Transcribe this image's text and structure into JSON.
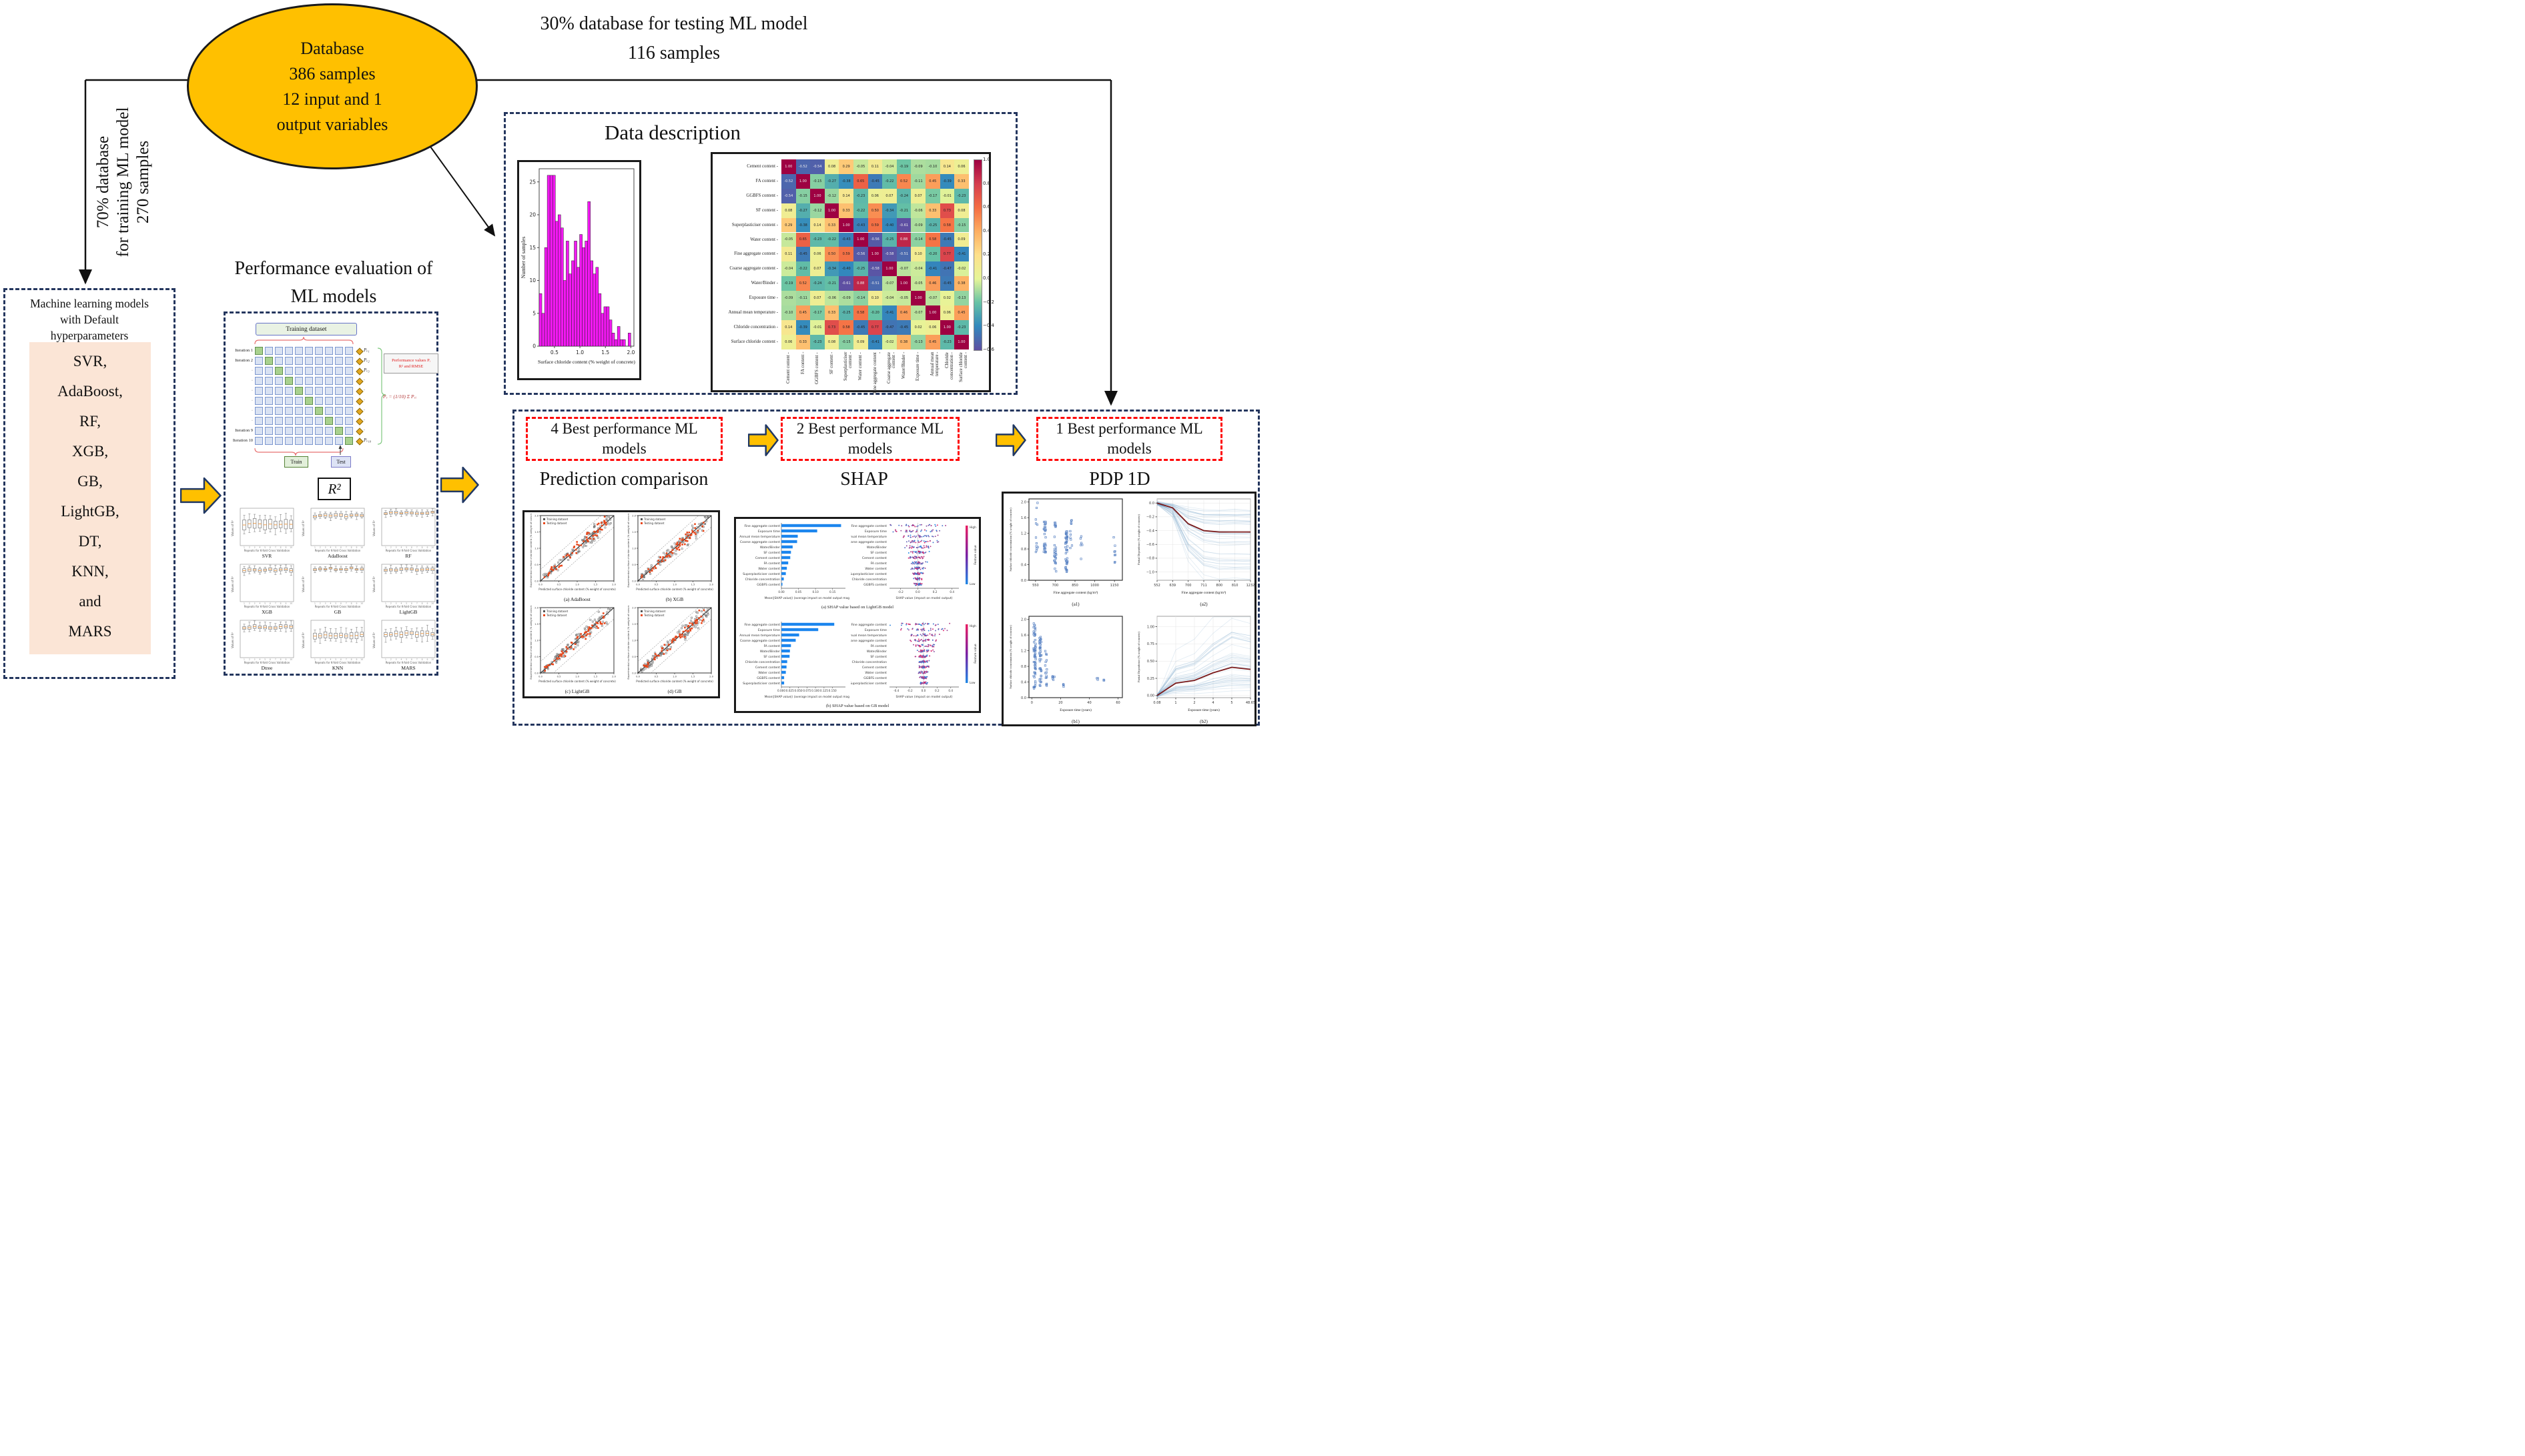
{
  "colors": {
    "gold": "#FFC000",
    "navy": "#203864",
    "dash_blue": "#24365E",
    "red_dash": "#FF0000",
    "peach": "#FBE5D6",
    "hist_magenta": "#F318F3",
    "bar_blue": "#1C86EE",
    "swarm_red": "#E91E63",
    "swarm_blue": "#1E88E5",
    "cell_blue": "#D9E2F3",
    "cell_green": "#A9D18E",
    "train_green": "#E2EFDA",
    "mean_line": "#7B1A1A",
    "scatter_red": "#E8481C",
    "scatter_blue": "#5B84C4"
  },
  "database_ellipse": {
    "lines": [
      "Database",
      "386 samples",
      "12 input and 1",
      "output variables"
    ]
  },
  "split": {
    "test_line1": "30% database for testing ML model",
    "test_line2": "116 samples",
    "train_lines": [
      "70% database",
      "for training ML model",
      "270 samples"
    ]
  },
  "left_box": {
    "title_lines": [
      "Machine learning models",
      "with Default",
      "hyperparameters"
    ],
    "models": [
      "SVR,",
      "AdaBoost,",
      "RF,",
      "XGB,",
      "GB,",
      "LightGB,",
      "DT,",
      "KNN,",
      "and",
      "MARS"
    ]
  },
  "performance": {
    "title_lines": [
      "Performance evaluation of",
      "ML models"
    ],
    "cv": {
      "training_dataset_label": "Training dataset",
      "iteration_labels": [
        "Iteration 1",
        "Iteration 2",
        "·",
        "·",
        "·",
        "·",
        "·",
        "·",
        "Iteration 9",
        "Iteration 10"
      ],
      "p_labels": [
        "Pᵥ₁",
        "Pᵥ₂",
        "Pᵥ₃",
        "·",
        "·",
        "·",
        "·",
        "·",
        "·",
        "Pᵥ₁₀"
      ],
      "performance_box_lines": [
        "Performance values Pᵢ",
        "R² and RMSE"
      ],
      "formula": "Pᵥ = (1/10) Σ Pᵥᵢ",
      "train_label": "Train",
      "test_label": "Test"
    },
    "r2_label": "R²"
  },
  "data_description": {
    "title": "Data description"
  },
  "pipeline": {
    "stage_boxes": [
      "4 Best performance ML models",
      "2 Best performance ML models",
      "1 Best performance ML models"
    ],
    "headings": [
      "Prediction comparison",
      "SHAP",
      "PDP 1D"
    ]
  },
  "chart_data": [
    {
      "id": "chloride_histogram",
      "type": "bar",
      "xlabel": "Surface chloride content (% weight of concrete)",
      "ylabel": "Number of samples",
      "bin_start": 0.2,
      "bin_width": 0.0529,
      "xticks": [
        0.5,
        1.0,
        1.5,
        2.0
      ],
      "yticks": [
        0,
        5,
        10,
        15,
        20,
        25
      ],
      "ylim": [
        0,
        27
      ],
      "values": [
        8,
        5,
        15,
        26,
        26,
        26,
        19,
        20,
        18,
        10,
        16,
        11,
        13,
        16,
        12,
        17,
        15,
        16,
        22,
        13,
        11,
        12,
        8,
        5,
        6,
        6,
        4,
        2,
        1,
        3,
        1,
        1,
        0,
        2
      ]
    },
    {
      "id": "correlation_heatmap",
      "type": "heatmap",
      "labels": [
        "Cement content",
        "FA content",
        "GGBFS content",
        "SF content",
        "Superplasticiser content",
        "Water content",
        "Fine aggregate content",
        "Coarse aggregate content",
        "Water/Binder",
        "Exposure time",
        "Annual mean temperature",
        "Chloride concentration",
        "Surface chloride content"
      ],
      "colorbar_ticks": [
        1.0,
        0.8,
        0.6,
        0.4,
        0.2,
        0.0,
        -0.2,
        -0.4,
        -0.6
      ],
      "matrix": [
        [
          1.0,
          -0.52,
          -0.54,
          0.08,
          0.29,
          -0.05,
          0.11,
          -0.04,
          -0.19,
          -0.09,
          -0.1,
          0.14,
          0.06
        ],
        [
          -0.52,
          1.0,
          -0.15,
          -0.27,
          -0.38,
          0.65,
          -0.45,
          -0.22,
          0.52,
          -0.11,
          0.45,
          -0.39,
          0.33
        ],
        [
          -0.54,
          -0.15,
          1.0,
          -0.12,
          0.14,
          -0.23,
          0.06,
          0.07,
          -0.24,
          0.07,
          -0.17,
          -0.01,
          -0.23
        ],
        [
          0.08,
          -0.27,
          -0.12,
          1.0,
          0.33,
          -0.22,
          0.5,
          -0.34,
          -0.21,
          -0.06,
          0.33,
          0.73,
          0.08
        ],
        [
          0.29,
          -0.38,
          0.14,
          0.33,
          1.0,
          -0.43,
          0.59,
          -0.4,
          -0.61,
          -0.09,
          -0.25,
          0.58,
          -0.15
        ],
        [
          -0.05,
          0.65,
          -0.23,
          -0.22,
          -0.43,
          1.0,
          -0.56,
          -0.25,
          0.88,
          -0.14,
          0.58,
          -0.45,
          0.09
        ],
        [
          0.11,
          -0.45,
          0.06,
          0.5,
          0.59,
          -0.56,
          1.0,
          -0.58,
          -0.51,
          0.1,
          -0.2,
          0.77,
          -0.41
        ],
        [
          -0.04,
          -0.22,
          0.07,
          -0.34,
          -0.4,
          -0.25,
          -0.58,
          1.0,
          -0.07,
          -0.04,
          -0.41,
          -0.47,
          -0.02
        ],
        [
          -0.19,
          0.52,
          -0.24,
          -0.21,
          -0.61,
          0.88,
          -0.51,
          -0.07,
          1.0,
          -0.05,
          0.46,
          -0.45,
          0.38
        ],
        [
          -0.09,
          -0.11,
          0.07,
          -0.06,
          -0.09,
          -0.14,
          0.1,
          -0.04,
          -0.05,
          1.0,
          -0.07,
          0.02,
          -0.13
        ],
        [
          -0.1,
          0.45,
          -0.17,
          0.33,
          -0.25,
          0.58,
          -0.2,
          -0.41,
          0.46,
          -0.07,
          1.0,
          0.06,
          0.45
        ],
        [
          0.14,
          -0.39,
          -0.01,
          0.73,
          0.58,
          -0.45,
          0.77,
          -0.47,
          -0.45,
          0.02,
          0.06,
          1.0,
          -0.23
        ],
        [
          0.06,
          0.33,
          -0.23,
          0.08,
          -0.15,
          0.09,
          -0.41,
          -0.02,
          0.38,
          -0.13,
          0.45,
          -0.23,
          1.0
        ]
      ]
    },
    {
      "id": "cv_r2_boxplots",
      "type": "boxplot",
      "ylabel": "Values of R²",
      "xlabel": "Repeats for K-fold Cross Validation",
      "ylim": [
        -0.2,
        1.05
      ],
      "models": [
        {
          "name": "SVR",
          "median": 0.52,
          "iqr": 0.3,
          "whisker": 0.45
        },
        {
          "name": "AdaBoost",
          "median": 0.8,
          "iqr": 0.1,
          "whisker": 0.22
        },
        {
          "name": "RF",
          "median": 0.9,
          "iqr": 0.08,
          "whisker": 0.2
        },
        {
          "name": "XGB",
          "median": 0.87,
          "iqr": 0.1,
          "whisker": 0.25
        },
        {
          "name": "GB",
          "median": 0.9,
          "iqr": 0.07,
          "whisker": 0.18
        },
        {
          "name": "LightGB",
          "median": 0.88,
          "iqr": 0.09,
          "whisker": 0.22
        },
        {
          "name": "Dtree",
          "median": 0.82,
          "iqr": 0.12,
          "whisker": 0.3
        },
        {
          "name": "KNN",
          "median": 0.55,
          "iqr": 0.18,
          "whisker": 0.4
        },
        {
          "name": "MARS",
          "median": 0.6,
          "iqr": 0.15,
          "whisker": 0.4
        }
      ]
    },
    {
      "id": "prediction_comparison",
      "type": "scatter",
      "subplot_captions": [
        "(a) AdaBoost",
        "(b) XGB",
        "(c) LightGB",
        "(d) GB"
      ],
      "legend": [
        "Training dataset",
        "Testing dataset"
      ],
      "xlabel": "Predicted surface chloride content (% weight of concrete)",
      "ylabel": "Experimental surface chloride content (% weight of concrete)",
      "ticks": [
        0.0,
        0.5,
        1.0,
        1.5,
        2.0
      ],
      "lim": [
        0,
        2
      ]
    },
    {
      "id": "shap_summary",
      "type": "bar",
      "bar_xlabel": "Mean(|SHAP value|) (average impact on model output magnitude)",
      "swarm_xlabel": "SHAP value (impact on model output)",
      "colorbar": {
        "high": "High",
        "low": "Low",
        "label": "Feature value"
      },
      "rows": [
        {
          "caption": "(a) SHAP value based on LightGB model",
          "features": [
            "Fine aggregate content",
            "Exposure time",
            "Annual mean temperature",
            "Coarse aggregate content",
            "Water/Binder",
            "SF content",
            "Cement content",
            "FA content",
            "Water content",
            "Superplasticiser content",
            "Chloride concentration",
            "GGBFS content"
          ],
          "values": [
            0.175,
            0.105,
            0.048,
            0.046,
            0.033,
            0.028,
            0.026,
            0.02,
            0.016,
            0.013,
            0.007,
            0.003
          ],
          "bar_xticks": [
            "0.00",
            "0.05",
            "0.10",
            "0.15"
          ],
          "swarm_xticks": [
            "-0.2",
            "0.0",
            "0.2",
            "0.4"
          ],
          "swarm_xlim": [
            -0.33,
            0.48
          ]
        },
        {
          "caption": "(b) SHAP value based on GB model",
          "features": [
            "Fine aggregate content",
            "Exposure time",
            "Annual mean temperature",
            "Coarse aggregate content",
            "FA content",
            "Water/Binder",
            "SF content",
            "Chloride concentration",
            "Cement content",
            "Water content",
            "GGBFS content",
            "Superplasticiser content"
          ],
          "values": [
            0.155,
            0.108,
            0.052,
            0.042,
            0.028,
            0.025,
            0.024,
            0.017,
            0.015,
            0.013,
            0.008,
            0.008
          ],
          "bar_xticks": [
            "0.000",
            "0.025",
            "0.050",
            "0.075",
            "0.100",
            "0.125",
            "0.150"
          ],
          "swarm_xticks": [
            "-0.4",
            "-0.2",
            "0.0",
            "0.2",
            "0.4"
          ],
          "swarm_xlim": [
            -0.5,
            0.52
          ]
        }
      ]
    },
    {
      "id": "pdp_1d",
      "type": "line",
      "subplots": [
        {
          "id": "a1",
          "kind": "scatter",
          "caption": "(a1)",
          "xlabel": "Fine aggregate content (kg/m³)",
          "ylabel": "Surface chloride concentration (% weight of concrete)",
          "xticks": [
            550,
            700,
            850,
            1000,
            1150
          ],
          "yticks": [
            0.0,
            0.4,
            0.8,
            1.2,
            1.6,
            2.0
          ],
          "xlim": [
            500,
            1210
          ],
          "ylim": [
            0,
            2.08
          ],
          "clusters": [
            {
              "x": 560,
              "n": 12,
              "ymin": 0.7,
              "ymax": 2.0
            },
            {
              "x": 620,
              "n": 30,
              "ymin": 0.7,
              "ymax": 1.5
            },
            {
              "x": 700,
              "n": 28,
              "ymin": 0.2,
              "ymax": 1.5
            },
            {
              "x": 785,
              "n": 45,
              "ymin": 0.2,
              "ymax": 1.25
            },
            {
              "x": 820,
              "n": 10,
              "ymin": 0.3,
              "ymax": 1.7
            },
            {
              "x": 900,
              "n": 6,
              "ymin": 0.3,
              "ymax": 1.4
            },
            {
              "x": 1150,
              "n": 8,
              "ymin": 0.4,
              "ymax": 1.15
            }
          ]
        },
        {
          "id": "a2",
          "kind": "ice",
          "caption": "(a2)",
          "xlabel": "Fine aggregate content (kg/m³)",
          "ylabel": "Partial Dependence (% weight of concrete)",
          "xticks": [
            "552",
            "639",
            "700",
            "711",
            "800",
            "810",
            "1232"
          ],
          "yticks": [
            0.0,
            -0.2,
            -0.4,
            -0.6,
            -0.8,
            -1.0
          ],
          "mean": [
            0,
            -0.07,
            -0.3,
            -0.4,
            -0.42,
            -0.42,
            -0.42
          ],
          "ylim": [
            -1.12,
            0.06
          ]
        },
        {
          "id": "b1",
          "kind": "scatter",
          "caption": "(b1)",
          "xlabel": "Exposure time (years)",
          "ylabel": "Surface chloride concentration (% weight of concrete)",
          "xticks": [
            0,
            20,
            40,
            60
          ],
          "yticks": [
            0.0,
            0.4,
            0.8,
            1.2,
            1.6,
            2.0
          ],
          "xlim": [
            -2,
            63
          ],
          "ylim": [
            0,
            2.08
          ],
          "clusters": [
            {
              "x": 2,
              "n": 60,
              "ymin": 0.2,
              "ymax": 2.0
            },
            {
              "x": 6,
              "n": 40,
              "ymin": 0.3,
              "ymax": 1.6
            },
            {
              "x": 10,
              "n": 15,
              "ymin": 0.3,
              "ymax": 1.2
            },
            {
              "x": 15,
              "n": 6,
              "ymin": 0.45,
              "ymax": 0.55
            },
            {
              "x": 22,
              "n": 4,
              "ymin": 0.28,
              "ymax": 0.36
            },
            {
              "x": 46,
              "n": 3,
              "ymin": 0.4,
              "ymax": 0.5
            },
            {
              "x": 50,
              "n": 3,
              "ymin": 0.42,
              "ymax": 0.48
            }
          ]
        },
        {
          "id": "b2",
          "kind": "ice",
          "caption": "(b2)",
          "xlabel": "Exposure time (years)",
          "ylabel": "Partial Dependence (% weight of concrete)",
          "xticks": [
            "0.08",
            "1",
            "2",
            "4",
            "5",
            "48.65"
          ],
          "yticks": [
            0.0,
            0.25,
            0.5,
            0.75,
            1.0
          ],
          "mean": [
            0,
            0.18,
            0.22,
            0.33,
            0.41,
            0.38
          ],
          "ylim": [
            -0.03,
            1.15
          ]
        }
      ]
    }
  ]
}
